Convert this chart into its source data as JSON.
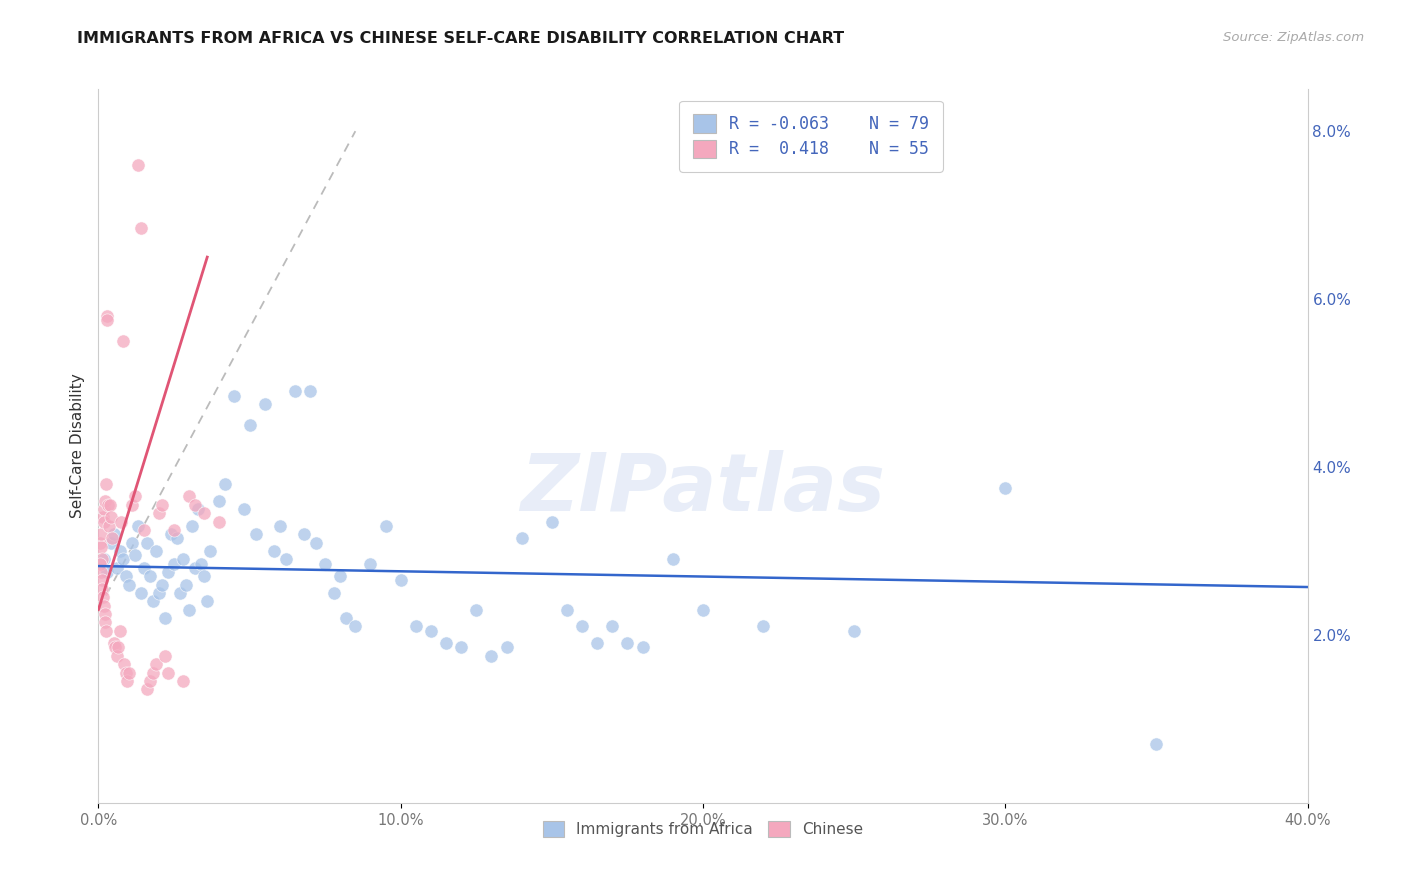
{
  "title": "IMMIGRANTS FROM AFRICA VS CHINESE SELF-CARE DISABILITY CORRELATION CHART",
  "source": "Source: ZipAtlas.com",
  "ylabel": "Self-Care Disability",
  "legend_blue_R": "R = -0.063",
  "legend_blue_N": "N = 79",
  "legend_pink_R": "R =  0.418",
  "legend_pink_N": "N = 55",
  "legend_label1": "Immigrants from Africa",
  "legend_label2": "Chinese",
  "watermark": "ZIPatlas",
  "blue_scatter": [
    [
      0.2,
      2.9
    ],
    [
      0.3,
      2.75
    ],
    [
      0.4,
      3.1
    ],
    [
      0.5,
      3.2
    ],
    [
      0.6,
      2.8
    ],
    [
      0.7,
      3.0
    ],
    [
      0.8,
      2.9
    ],
    [
      0.9,
      2.7
    ],
    [
      1.0,
      2.6
    ],
    [
      1.1,
      3.1
    ],
    [
      1.2,
      2.95
    ],
    [
      1.3,
      3.3
    ],
    [
      1.4,
      2.5
    ],
    [
      1.5,
      2.8
    ],
    [
      1.6,
      3.1
    ],
    [
      1.7,
      2.7
    ],
    [
      1.8,
      2.4
    ],
    [
      1.9,
      3.0
    ],
    [
      2.0,
      2.5
    ],
    [
      2.1,
      2.6
    ],
    [
      2.2,
      2.2
    ],
    [
      2.3,
      2.75
    ],
    [
      2.4,
      3.2
    ],
    [
      2.5,
      2.85
    ],
    [
      2.6,
      3.15
    ],
    [
      2.7,
      2.5
    ],
    [
      2.8,
      2.9
    ],
    [
      2.9,
      2.6
    ],
    [
      3.0,
      2.3
    ],
    [
      3.1,
      3.3
    ],
    [
      3.2,
      2.8
    ],
    [
      3.3,
      3.5
    ],
    [
      3.4,
      2.85
    ],
    [
      3.5,
      2.7
    ],
    [
      3.6,
      2.4
    ],
    [
      3.7,
      3.0
    ],
    [
      4.0,
      3.6
    ],
    [
      4.2,
      3.8
    ],
    [
      4.5,
      4.85
    ],
    [
      4.8,
      3.5
    ],
    [
      5.0,
      4.5
    ],
    [
      5.2,
      3.2
    ],
    [
      5.5,
      4.75
    ],
    [
      5.8,
      3.0
    ],
    [
      6.0,
      3.3
    ],
    [
      6.2,
      2.9
    ],
    [
      6.5,
      4.9
    ],
    [
      6.8,
      3.2
    ],
    [
      7.0,
      4.9
    ],
    [
      7.2,
      3.1
    ],
    [
      7.5,
      2.85
    ],
    [
      7.8,
      2.5
    ],
    [
      8.0,
      2.7
    ],
    [
      8.2,
      2.2
    ],
    [
      8.5,
      2.1
    ],
    [
      9.0,
      2.85
    ],
    [
      9.5,
      3.3
    ],
    [
      10.0,
      2.65
    ],
    [
      10.5,
      2.1
    ],
    [
      11.0,
      2.05
    ],
    [
      11.5,
      1.9
    ],
    [
      12.0,
      1.85
    ],
    [
      12.5,
      2.3
    ],
    [
      13.0,
      1.75
    ],
    [
      13.5,
      1.85
    ],
    [
      14.0,
      3.15
    ],
    [
      15.0,
      3.35
    ],
    [
      15.5,
      2.3
    ],
    [
      16.0,
      2.1
    ],
    [
      16.5,
      1.9
    ],
    [
      17.0,
      2.1
    ],
    [
      17.5,
      1.9
    ],
    [
      18.0,
      1.85
    ],
    [
      19.0,
      2.9
    ],
    [
      20.0,
      2.3
    ],
    [
      22.0,
      2.1
    ],
    [
      25.0,
      2.05
    ],
    [
      30.0,
      3.75
    ],
    [
      35.0,
      0.7
    ]
  ],
  "pink_scatter": [
    [
      0.05,
      3.1
    ],
    [
      0.08,
      3.05
    ],
    [
      0.1,
      3.2
    ],
    [
      0.12,
      2.9
    ],
    [
      0.15,
      3.4
    ],
    [
      0.18,
      3.5
    ],
    [
      0.2,
      3.35
    ],
    [
      0.22,
      3.6
    ],
    [
      0.25,
      3.8
    ],
    [
      0.28,
      5.8
    ],
    [
      0.3,
      5.75
    ],
    [
      0.32,
      3.55
    ],
    [
      0.35,
      3.3
    ],
    [
      0.38,
      3.55
    ],
    [
      0.4,
      3.4
    ],
    [
      0.45,
      3.15
    ],
    [
      0.5,
      1.9
    ],
    [
      0.55,
      1.85
    ],
    [
      0.6,
      1.75
    ],
    [
      0.65,
      1.85
    ],
    [
      0.7,
      2.05
    ],
    [
      0.75,
      3.35
    ],
    [
      0.8,
      5.5
    ],
    [
      0.85,
      1.65
    ],
    [
      0.9,
      1.55
    ],
    [
      0.95,
      1.45
    ],
    [
      1.0,
      1.55
    ],
    [
      1.1,
      3.55
    ],
    [
      1.2,
      3.65
    ],
    [
      1.3,
      7.6
    ],
    [
      1.4,
      6.85
    ],
    [
      1.5,
      3.25
    ],
    [
      1.6,
      1.35
    ],
    [
      1.7,
      1.45
    ],
    [
      1.8,
      1.55
    ],
    [
      1.9,
      1.65
    ],
    [
      2.0,
      3.45
    ],
    [
      2.1,
      3.55
    ],
    [
      2.2,
      1.75
    ],
    [
      2.3,
      1.55
    ],
    [
      2.5,
      3.25
    ],
    [
      2.8,
      1.45
    ],
    [
      3.0,
      3.65
    ],
    [
      3.2,
      3.55
    ],
    [
      3.5,
      3.45
    ],
    [
      4.0,
      3.35
    ],
    [
      0.06,
      2.85
    ],
    [
      0.09,
      2.75
    ],
    [
      0.11,
      2.65
    ],
    [
      0.13,
      2.55
    ],
    [
      0.16,
      2.45
    ],
    [
      0.19,
      2.35
    ],
    [
      0.21,
      2.25
    ],
    [
      0.23,
      2.15
    ],
    [
      0.26,
      2.05
    ]
  ],
  "blue_color": "#a8c4e8",
  "pink_color": "#f4a8be",
  "blue_line_color": "#3366cc",
  "pink_line_color": "#e05575",
  "bg_color": "#ffffff",
  "grid_color": "#e0e0e0",
  "title_color": "#1a1a1a",
  "right_axis_color": "#4466bb",
  "xlim": [
    0,
    40
  ],
  "ylim": [
    0,
    8.5
  ],
  "blue_trend_x": [
    0,
    40
  ],
  "blue_trend_y": [
    2.82,
    2.57
  ],
  "pink_trend_x": [
    0.0,
    3.6
  ],
  "pink_trend_y": [
    2.3,
    6.5
  ],
  "dash_trend_x": [
    0.0,
    8.5
  ],
  "dash_trend_y": [
    2.3,
    8.0
  ],
  "right_yticks": [
    2.0,
    4.0,
    6.0,
    8.0
  ],
  "right_yticklabels": [
    "2.0%",
    "4.0%",
    "6.0%",
    "8.0%"
  ],
  "xticks": [
    0,
    10,
    20,
    30,
    40
  ],
  "xticklabels": [
    "0.0%",
    "10.0%",
    "20.0%",
    "30.0%",
    "40.0%"
  ]
}
